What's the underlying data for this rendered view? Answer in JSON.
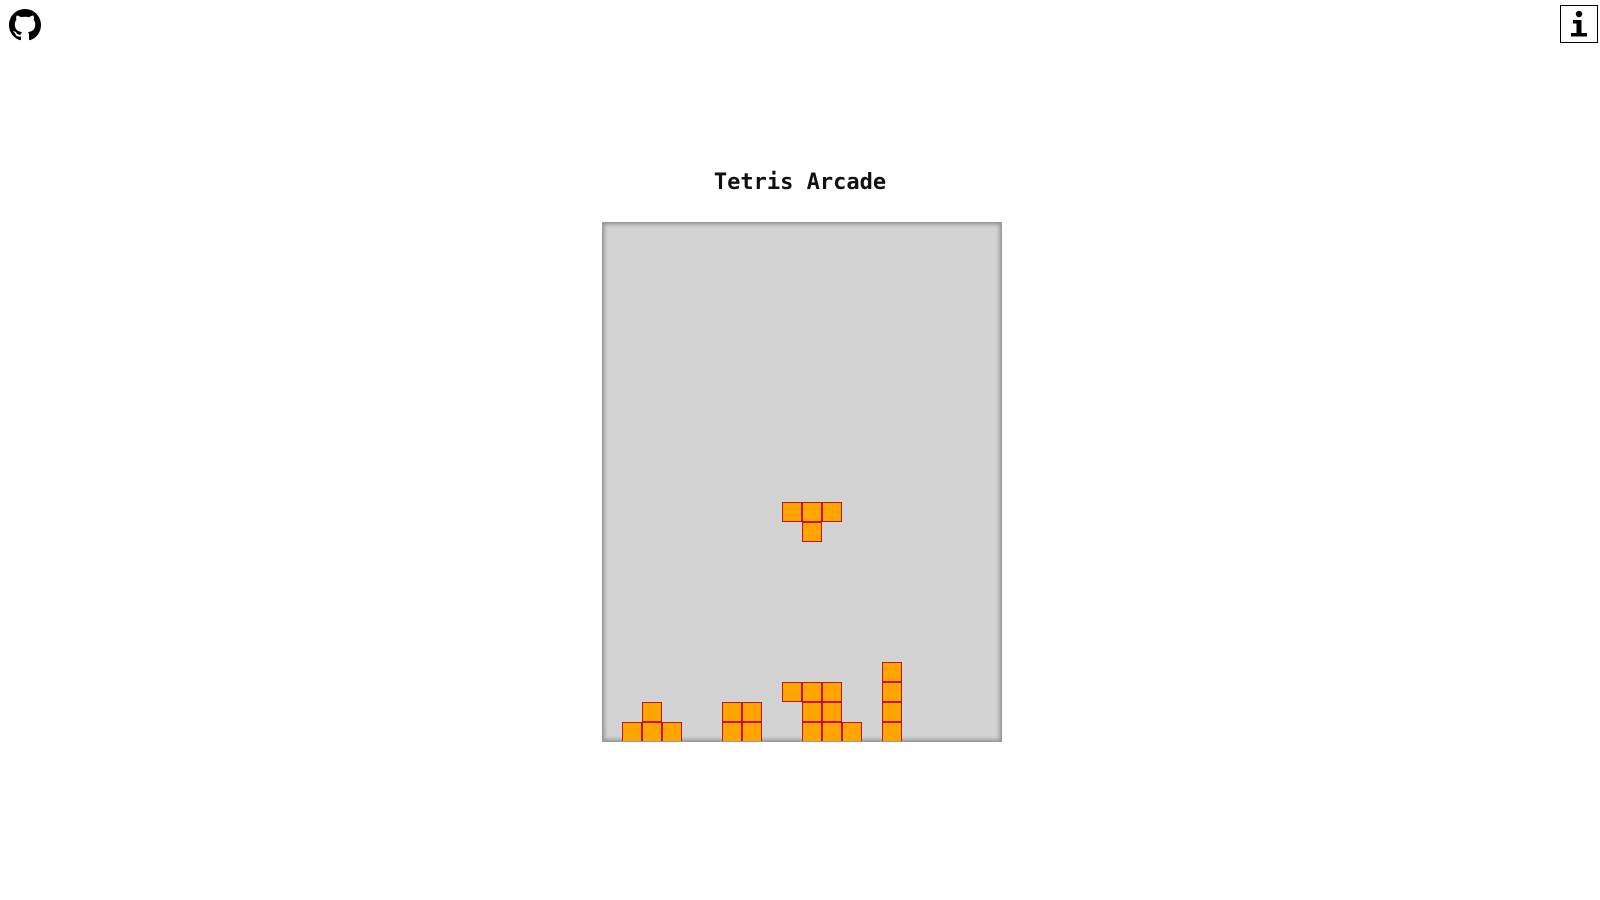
{
  "header": {
    "github_icon": "github-icon",
    "info_icon": "info-icon"
  },
  "game": {
    "title": "Tetris Arcade",
    "board": {
      "cols": 20,
      "rows": 26,
      "background": "#d3d3d3",
      "block_fill": "#ffa500",
      "block_border": "#c8102e"
    },
    "active_piece": {
      "type": "T",
      "cells": [
        [
          9,
          14
        ],
        [
          10,
          14
        ],
        [
          11,
          14
        ],
        [
          10,
          15
        ]
      ]
    },
    "settled_blocks": [
      [
        1,
        25
      ],
      [
        2,
        25
      ],
      [
        3,
        25
      ],
      [
        2,
        24
      ],
      [
        6,
        24
      ],
      [
        7,
        24
      ],
      [
        6,
        25
      ],
      [
        7,
        25
      ],
      [
        9,
        23
      ],
      [
        10,
        23
      ],
      [
        11,
        23
      ],
      [
        10,
        24
      ],
      [
        11,
        24
      ],
      [
        10,
        25
      ],
      [
        11,
        25
      ],
      [
        12,
        25
      ],
      [
        14,
        22
      ],
      [
        14,
        23
      ],
      [
        14,
        24
      ],
      [
        14,
        25
      ]
    ]
  }
}
